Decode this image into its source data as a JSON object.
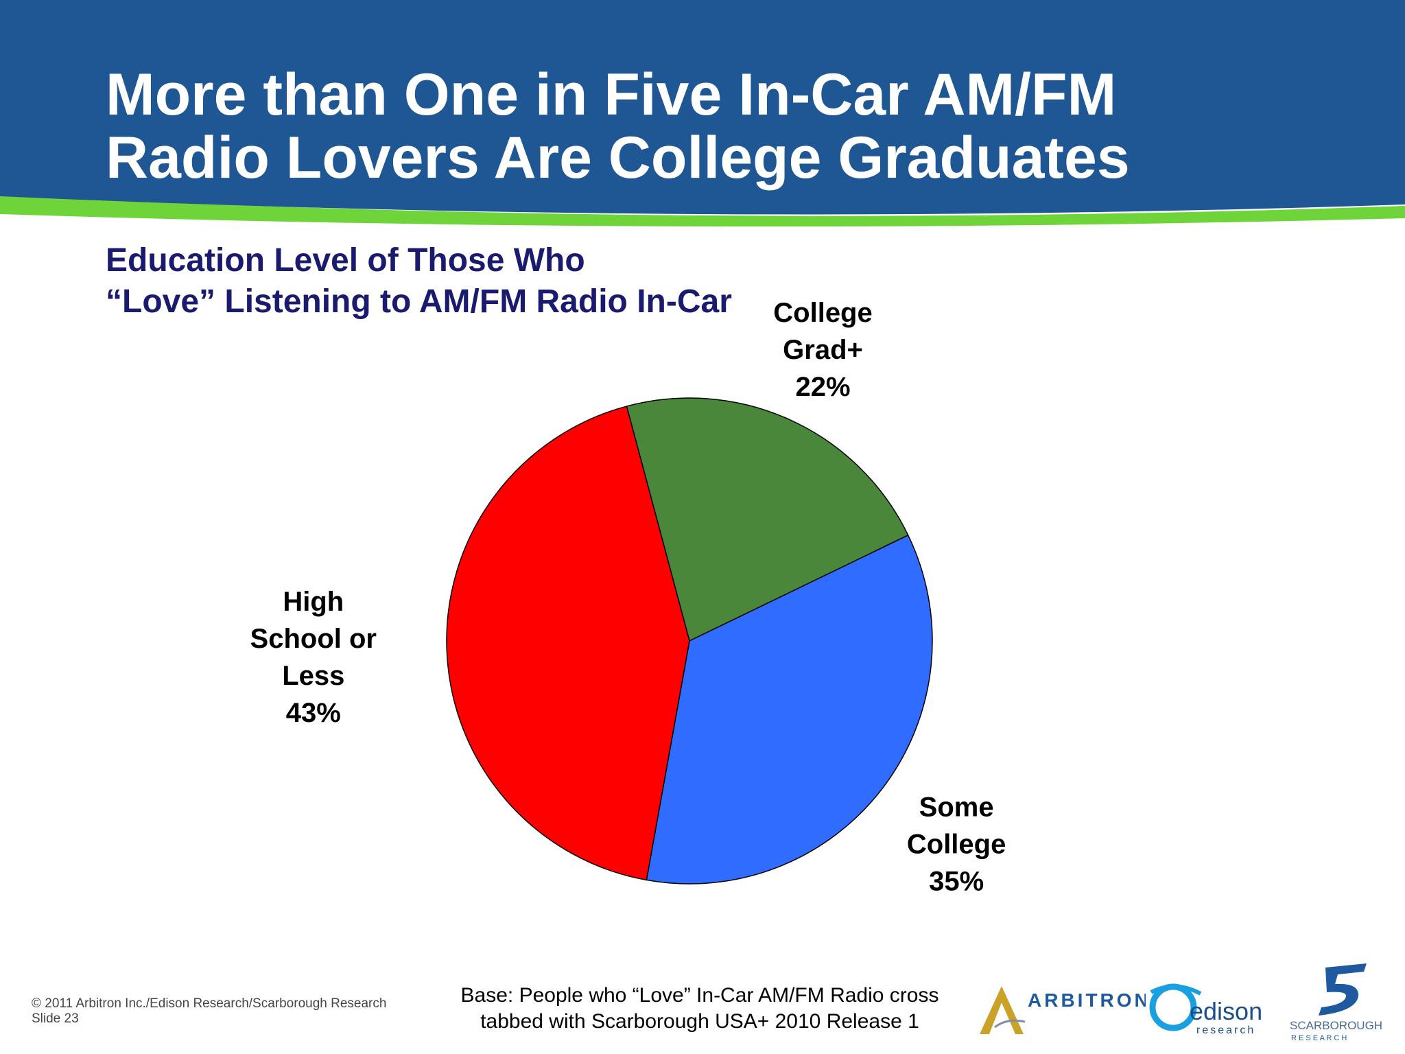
{
  "slide": {
    "title_lines": [
      "More than One in Five In-Car AM/FM",
      "Radio Lovers Are College Graduates"
    ],
    "subtitle_lines": [
      "Education Level of Those Who",
      "“Love” Listening to AM/FM Radio In-Car"
    ],
    "footer": {
      "copyright": "© 2011 Arbitron Inc./Edison Research/Scarborough Research",
      "slide_number": "Slide 23",
      "base_lines": [
        "Base: People who “Love” In-Car AM/FM Radio cross",
        "tabbed with Scarborough USA+ 2010 Release 1"
      ]
    },
    "logos": {
      "arbitron": "ARBITRON",
      "edison": "edison",
      "edison_sub": "research",
      "scarborough": "SCARBOROUGH",
      "scarborough_sub": "R E S E A R C H"
    },
    "colors": {
      "header_blue": "#1f5694",
      "header_green_stripe": "#6fd33a",
      "subtitle_navy": "#1a1a6e"
    }
  },
  "chart_data": {
    "type": "pie",
    "slices": [
      {
        "label_lines": [
          "College",
          "Grad+",
          "22%"
        ],
        "value": 22,
        "color": "#4a873b"
      },
      {
        "label_lines": [
          "Some",
          "College",
          "35%"
        ],
        "value": 35,
        "color": "#2f6cff"
      },
      {
        "label_lines": [
          "High",
          "School or",
          "Less",
          "43%"
        ],
        "value": 43,
        "color": "#ff0000"
      }
    ]
  }
}
